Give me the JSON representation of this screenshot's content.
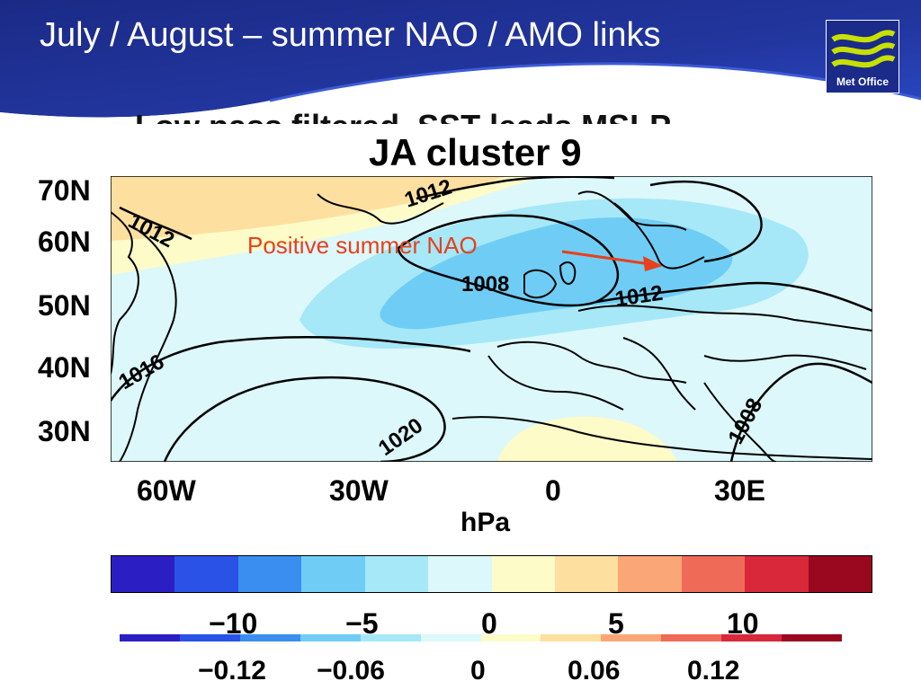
{
  "slide": {
    "title": "July / August – summer NAO / AMO links",
    "logo_text": "Met Office",
    "ghost_title": "Low pass filtered, SST leads MSLP"
  },
  "map": {
    "title": "JA cluster 9",
    "lat_labels": [
      "70N",
      "60N",
      "50N",
      "40N",
      "30N"
    ],
    "lon_labels": [
      "60W",
      "30W",
      "0",
      "30E"
    ],
    "contour_labels": [
      "1012",
      "1012",
      "1008",
      "1012",
      "1016",
      "1020",
      "1008"
    ],
    "annotation": "Positive summer NAO"
  },
  "colorbar": {
    "unit_label": "hPa",
    "ticks": [
      "−10",
      "−5",
      "0",
      "5",
      "10"
    ],
    "secondary_ticks": [
      "−0.12",
      "−0.06",
      "0",
      "0.06",
      "0.12"
    ],
    "colors": [
      "#2b1fc4",
      "#2a52e6",
      "#3a8ef0",
      "#6fcdf5",
      "#a6e8f7",
      "#dcf8fb",
      "#fdfbc8",
      "#fde0a0",
      "#fba676",
      "#f06a58",
      "#d8283a",
      "#9a0820"
    ]
  },
  "colors": {
    "header_navy": "#1a2b8a",
    "header_blue": "#2a4ac8",
    "annotation": "#e8401c",
    "logo_green": "#c8e000"
  }
}
